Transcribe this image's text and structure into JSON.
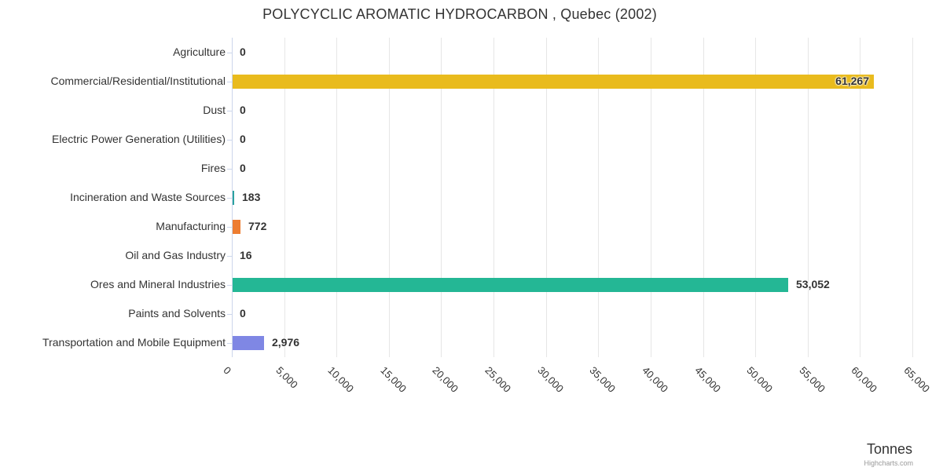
{
  "title": "POLYCYCLIC AROMATIC HYDROCARBON , Quebec (2002)",
  "credit_label": "Highcharts.com",
  "colors": {
    "grid": "#e6e6e6",
    "axis_line": "#ccd6eb",
    "text": "#333333",
    "credit": "#999999"
  },
  "chart_data": {
    "type": "bar",
    "orientation": "horizontal",
    "title": "POLYCYCLIC AROMATIC HYDROCARBON , Quebec (2002)",
    "xlabel": "Tonnes",
    "ylabel": "",
    "xlim": [
      0,
      65000
    ],
    "grid": true,
    "legend": false,
    "categories": [
      "Agriculture",
      "Commercial/Residential/Institutional",
      "Dust",
      "Electric Power Generation (Utilities)",
      "Fires",
      "Incineration and Waste Sources",
      "Manufacturing",
      "Oil and Gas Industry",
      "Ores and Mineral Industries",
      "Paints and Solvents",
      "Transportation and Mobile Equipment"
    ],
    "values": [
      0,
      61267,
      0,
      0,
      0,
      183,
      772,
      16,
      53052,
      0,
      2976
    ],
    "value_labels": [
      "0",
      "61,267",
      "0",
      "0",
      "0",
      "183",
      "772",
      "16",
      "53,052",
      "0",
      "2,976"
    ],
    "bar_colors": [
      null,
      "#e9bb1d",
      null,
      null,
      null,
      "#2ba2a0",
      "#ed7d31",
      null,
      "#24b795",
      null,
      "#7f87e4"
    ],
    "label_inside": [
      false,
      true,
      false,
      false,
      false,
      false,
      false,
      false,
      false,
      false,
      false
    ],
    "x_ticks": [
      {
        "label": "0",
        "value": 0
      },
      {
        "label": "5,000",
        "value": 5000
      },
      {
        "label": "10,000",
        "value": 10000
      },
      {
        "label": "15,000",
        "value": 15000
      },
      {
        "label": "20,000",
        "value": 20000
      },
      {
        "label": "25,000",
        "value": 25000
      },
      {
        "label": "30,000",
        "value": 30000
      },
      {
        "label": "35,000",
        "value": 35000
      },
      {
        "label": "40,000",
        "value": 40000
      },
      {
        "label": "45,000",
        "value": 45000
      },
      {
        "label": "50,000",
        "value": 50000
      },
      {
        "label": "55,000",
        "value": 55000
      },
      {
        "label": "60,000",
        "value": 60000
      },
      {
        "label": "65,000",
        "value": 65000
      }
    ]
  }
}
